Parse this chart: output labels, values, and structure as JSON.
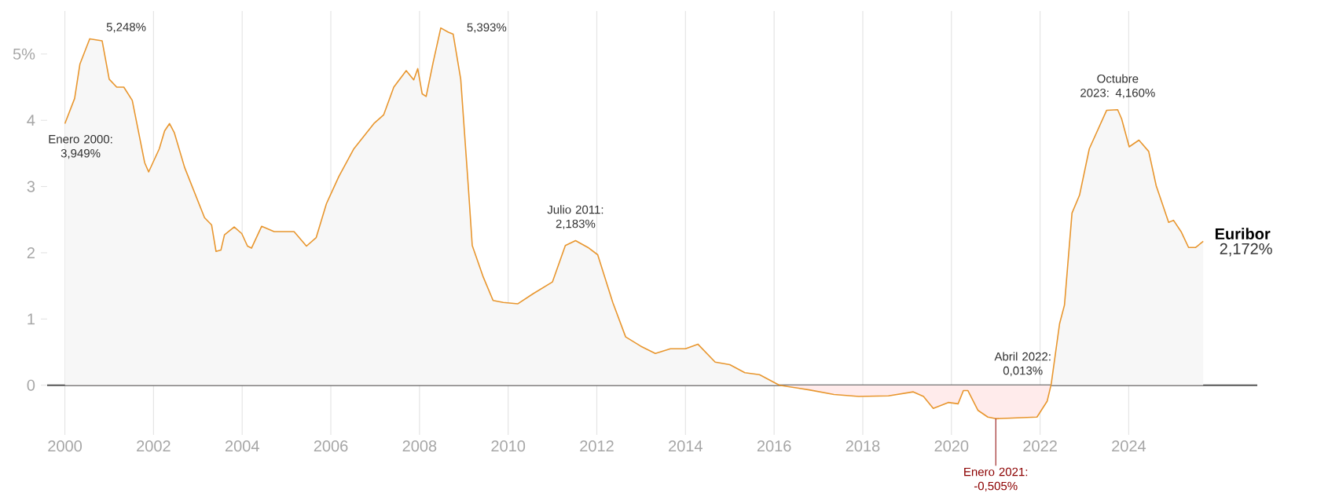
{
  "chart_data": {
    "type": "area",
    "x": [
      2000.0,
      2000.22,
      2000.34,
      2000.56,
      2000.84,
      2001.0,
      2001.17,
      2001.33,
      2001.52,
      2001.8,
      2001.89,
      2002.13,
      2002.25,
      2002.36,
      2002.47,
      2002.7,
      2003.15,
      2003.31,
      2003.41,
      2003.52,
      2003.6,
      2003.82,
      2003.99,
      2004.12,
      2004.21,
      2004.44,
      2004.72,
      2005.17,
      2005.45,
      2005.67,
      2005.9,
      2006.18,
      2006.52,
      2006.97,
      2007.19,
      2007.42,
      2007.7,
      2007.87,
      2007.96,
      2008.06,
      2008.15,
      2008.31,
      2008.48,
      2008.65,
      2008.76,
      2008.93,
      2009.1,
      2009.19,
      2009.44,
      2009.66,
      2009.89,
      2010.22,
      2010.56,
      2011.0,
      2011.29,
      2011.52,
      2011.8,
      2012.02,
      2012.36,
      2012.65,
      2012.99,
      2013.32,
      2013.66,
      2014.0,
      2014.28,
      2014.67,
      2015.0,
      2015.34,
      2015.67,
      2016.12,
      2016.79,
      2017.35,
      2017.91,
      2018.58,
      2019.14,
      2019.37,
      2019.59,
      2019.93,
      2020.15,
      2020.27,
      2020.37,
      2020.6,
      2020.82,
      2021.0,
      2021.6,
      2021.93,
      2022.16,
      2022.25,
      2022.44,
      2022.55,
      2022.72,
      2022.89,
      2023.11,
      2023.5,
      2023.75,
      2023.84,
      2024.01,
      2024.23,
      2024.45,
      2024.62,
      2024.9,
      2025.01,
      2025.18,
      2025.35,
      2025.51,
      2025.68
    ],
    "series": [
      {
        "name": "Euribor",
        "color": "#e8962e",
        "values": [
          3.949,
          4.33,
          4.85,
          5.23,
          5.2,
          4.62,
          4.5,
          4.5,
          4.3,
          3.36,
          3.22,
          3.57,
          3.84,
          3.95,
          3.81,
          3.29,
          2.53,
          2.42,
          2.02,
          2.04,
          2.27,
          2.39,
          2.29,
          2.1,
          2.07,
          2.4,
          2.32,
          2.32,
          2.1,
          2.23,
          2.74,
          3.15,
          3.57,
          3.95,
          4.08,
          4.5,
          4.75,
          4.61,
          4.78,
          4.4,
          4.36,
          4.88,
          5.393,
          5.33,
          5.3,
          4.62,
          3.01,
          2.11,
          1.63,
          1.28,
          1.25,
          1.23,
          1.38,
          1.56,
          2.11,
          2.183,
          2.08,
          1.97,
          1.25,
          0.73,
          0.59,
          0.48,
          0.55,
          0.55,
          0.62,
          0.35,
          0.31,
          0.19,
          0.16,
          0.0,
          -0.07,
          -0.14,
          -0.17,
          -0.16,
          -0.1,
          -0.17,
          -0.35,
          -0.26,
          -0.28,
          -0.08,
          -0.08,
          -0.38,
          -0.48,
          -0.505,
          -0.49,
          -0.48,
          -0.24,
          0.013,
          0.93,
          1.21,
          2.6,
          2.87,
          3.57,
          4.15,
          4.16,
          4.02,
          3.6,
          3.7,
          3.53,
          3.01,
          2.46,
          2.49,
          2.32,
          2.08,
          2.08,
          2.172
        ]
      }
    ],
    "xlim": [
      1999.6,
      2026.9
    ],
    "ylim": [
      -0.75,
      5.65
    ],
    "xticks": [
      2000,
      2002,
      2004,
      2006,
      2008,
      2010,
      2012,
      2014,
      2016,
      2018,
      2020,
      2022,
      2024
    ],
    "yticks": [
      0,
      1,
      2,
      3,
      4,
      {
        "value": 5,
        "label": "5%"
      }
    ],
    "grid": "x",
    "ref_lines": [
      {
        "axis": "y",
        "value": 0,
        "color": "#555555"
      }
    ],
    "annotations": [
      {
        "text": "Enero 2000: 3,949%",
        "x": 2000.0,
        "y": 3.949
      },
      {
        "text": "5,248%",
        "x": 2000.56,
        "y": 5.248
      },
      {
        "text": "5,393%",
        "x": 2008.48,
        "y": 5.393
      },
      {
        "text": "Julio 2011: 2,183%",
        "x": 2011.52,
        "y": 2.183
      },
      {
        "text": "Enero 2021: -0,505%",
        "x": 2021.0,
        "y": -0.505
      },
      {
        "text": "Abril 2022: 0,013%",
        "x": 2022.25,
        "y": 0.013
      },
      {
        "text": "Octubre 2023: 4,160%",
        "x": 2023.75,
        "y": 4.16
      },
      {
        "text": "2,172%",
        "x": 2025.68,
        "y": 2.172
      }
    ]
  }
}
